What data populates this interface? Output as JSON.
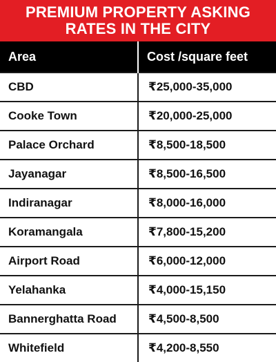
{
  "chart_data": {
    "type": "table",
    "title_lines": [
      "PREMIUM PROPERTY ASKING",
      "RATES IN THE CITY"
    ],
    "columns": [
      "Area",
      "Cost /square feet"
    ],
    "rows": [
      {
        "area": "CBD",
        "rate": "₹25,000-35,000"
      },
      {
        "area": "Cooke Town",
        "rate": "₹20,000-25,000"
      },
      {
        "area": "Palace Orchard",
        "rate": "₹8,500-18,500"
      },
      {
        "area": "Jayanagar",
        "rate": "₹8,500-16,500"
      },
      {
        "area": "Indiranagar",
        "rate": "₹8,000-16,000"
      },
      {
        "area": "Koramangala",
        "rate": "₹7,800-15,200"
      },
      {
        "area": "Airport Road",
        "rate": "₹6,000-12,000"
      },
      {
        "area": "Yelahanka",
        "rate": "₹4,000-15,150"
      },
      {
        "area": "Bannerghatta Road",
        "rate": "₹4,500-8,500"
      },
      {
        "area": "Whitefield",
        "rate": "₹4,200-8,550"
      }
    ],
    "colors": {
      "title_bg": "#e31e24",
      "header_bg": "#000000"
    }
  }
}
